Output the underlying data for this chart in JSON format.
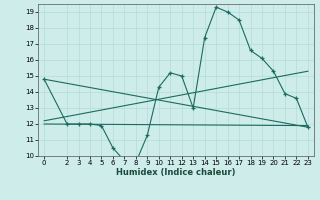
{
  "xlabel": "Humidex (Indice chaleur)",
  "ylabel": "",
  "bg_color": "#ceecea",
  "grid_color": "#b8dedc",
  "line_color": "#1a6b60",
  "xlim": [
    -0.5,
    23.5
  ],
  "ylim": [
    10,
    19.5
  ],
  "xticks": [
    0,
    2,
    3,
    4,
    5,
    6,
    7,
    8,
    9,
    10,
    11,
    12,
    13,
    14,
    15,
    16,
    17,
    18,
    19,
    20,
    21,
    22,
    23
  ],
  "yticks": [
    10,
    11,
    12,
    13,
    14,
    15,
    16,
    17,
    18,
    19
  ],
  "main_x": [
    0,
    2,
    3,
    4,
    5,
    6,
    7,
    8,
    9,
    10,
    11,
    12,
    13,
    14,
    15,
    16,
    17,
    18,
    19,
    20,
    21,
    22,
    23
  ],
  "main_y": [
    14.8,
    12.0,
    12.0,
    12.0,
    11.9,
    10.5,
    9.7,
    9.6,
    11.3,
    14.3,
    15.2,
    15.0,
    13.0,
    17.4,
    19.3,
    19.0,
    18.5,
    16.6,
    16.1,
    15.3,
    13.9,
    13.6,
    11.8
  ],
  "line2_x": [
    0,
    23
  ],
  "line2_y": [
    14.8,
    11.8
  ],
  "line3_x": [
    0,
    23
  ],
  "line3_y": [
    12.2,
    15.3
  ],
  "line4_x": [
    0,
    23
  ],
  "line4_y": [
    12.0,
    11.9
  ]
}
